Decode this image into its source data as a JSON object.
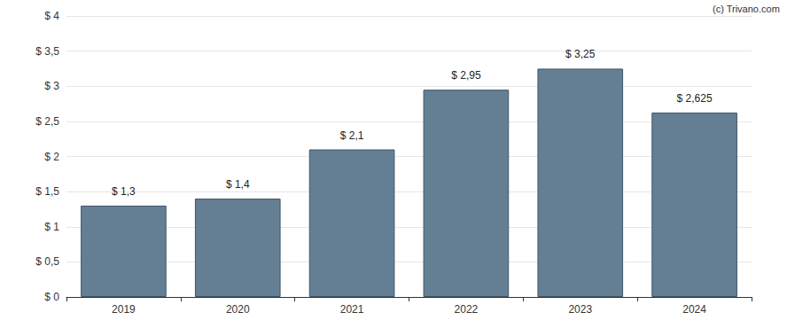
{
  "chart_data": {
    "type": "bar",
    "annotation": "(c) Trivano.com",
    "categories": [
      "2019",
      "2020",
      "2021",
      "2022",
      "2023",
      "2024"
    ],
    "values": [
      1.3,
      1.4,
      2.1,
      2.95,
      3.25,
      2.625
    ],
    "value_labels": [
      "$ 1,3",
      "$ 1,4",
      "$ 2,1",
      "$ 2,95",
      "$ 3,25",
      "$ 2,625"
    ],
    "data_labels": true,
    "color": "#647f94",
    "ylim": [
      0,
      4
    ],
    "yticks": [
      {
        "value": 0,
        "label": "$ 0"
      },
      {
        "value": 0.5,
        "label": "$ 0,5"
      },
      {
        "value": 1,
        "label": "$ 1"
      },
      {
        "value": 1.5,
        "label": "$ 1,5"
      },
      {
        "value": 2,
        "label": "$ 2"
      },
      {
        "value": 2.5,
        "label": "$ 2,5"
      },
      {
        "value": 3,
        "label": "$ 3"
      },
      {
        "value": 3.5,
        "label": "$ 3,5"
      },
      {
        "value": 4,
        "label": "$ 4"
      }
    ],
    "grid": true
  }
}
